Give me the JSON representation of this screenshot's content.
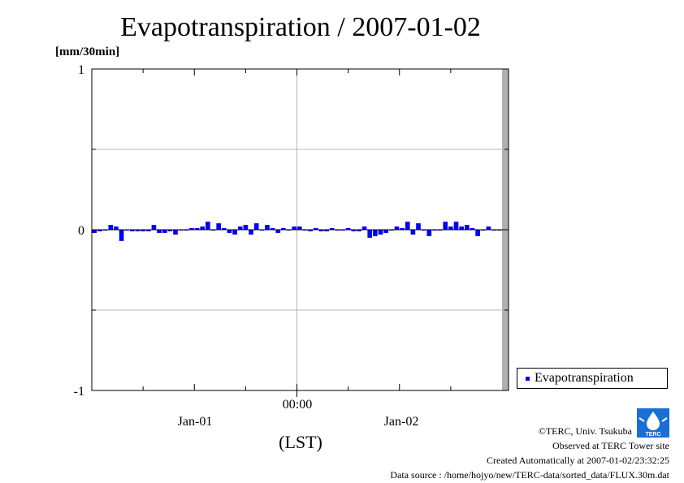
{
  "chart_data": {
    "type": "bar",
    "title": "Evapotranspiration / 2007-01-02",
    "ylabel": "[mm/30min]",
    "xlabel": "(LST)",
    "ylim": [
      -1,
      1
    ],
    "y_ticks": [
      "1",
      "0",
      "-1"
    ],
    "x_tick_labels": [
      "00:00"
    ],
    "x_day_labels": [
      "Jan-01",
      "Jan-02"
    ],
    "grid": true,
    "legend_position": "bottom-right",
    "series": [
      {
        "name": "Evapotranspiration",
        "color": "#0000ff",
        "values": [
          -0.02,
          -0.01,
          0.0,
          0.03,
          0.02,
          -0.07,
          0.0,
          -0.01,
          -0.01,
          -0.01,
          -0.01,
          0.03,
          -0.02,
          -0.02,
          -0.01,
          -0.03,
          0.0,
          0.0,
          0.01,
          0.01,
          0.02,
          0.05,
          0.0,
          0.04,
          0.01,
          -0.02,
          -0.03,
          0.02,
          0.03,
          -0.03,
          0.04,
          0.0,
          0.03,
          0.01,
          -0.02,
          0.01,
          0.0,
          0.02,
          0.02,
          0.0,
          -0.01,
          0.01,
          -0.01,
          -0.01,
          0.01,
          0.0,
          0.0,
          0.01,
          -0.01,
          -0.01,
          0.02,
          -0.05,
          -0.04,
          -0.03,
          -0.02,
          0.0,
          0.02,
          0.01,
          0.05,
          -0.03,
          0.04,
          0.0,
          -0.04,
          0.0,
          0.0,
          0.05,
          0.02,
          0.05,
          0.02,
          0.03,
          0.01,
          -0.04,
          0.0,
          0.02,
          0.0,
          0.0
        ]
      }
    ]
  },
  "credits": {
    "copyright": "©TERC, Univ. Tsukuba",
    "observed": "Observed at TERC Tower site",
    "created": "Created Automatically at 2007-01-02/23:32:25",
    "source": "Data source : /home/hojyo/new/TERC-data/sorted_data/FLUX.30m.dat"
  },
  "logo": {
    "text": "TERC"
  }
}
